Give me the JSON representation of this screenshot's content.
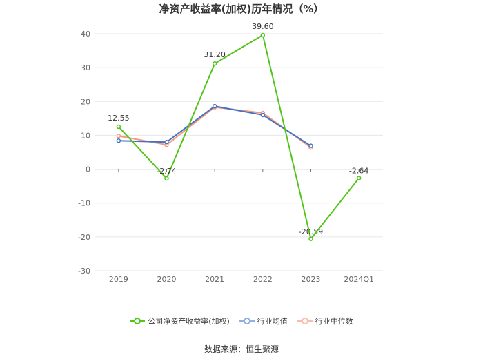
{
  "chart_data": {
    "type": "line",
    "title": "净资产收益率(加权)历年情况（%）",
    "categories": [
      "2019",
      "2020",
      "2021",
      "2022",
      "2023",
      "2024Q1"
    ],
    "ylim": [
      -30,
      40
    ],
    "yticks": [
      40,
      30,
      20,
      10,
      0,
      -10,
      -20,
      -30
    ],
    "grid": true,
    "legend_position": "bottom",
    "series": [
      {
        "name": "公司净资产收益率(加权)",
        "color": "#52c41a",
        "values": [
          12.55,
          -2.74,
          31.2,
          39.6,
          -20.59,
          -2.64
        ],
        "labels": [
          "12.55",
          "-2.74",
          "31.20",
          "39.60",
          "-20.59",
          "-2.64"
        ]
      },
      {
        "name": "行业均值",
        "color": "#4472c4",
        "values": [
          8.4,
          8.0,
          18.6,
          16.0,
          6.9,
          null
        ]
      },
      {
        "name": "行业中位数",
        "color": "#f4977b",
        "values": [
          9.8,
          7.2,
          18.3,
          16.6,
          6.4,
          null
        ]
      }
    ]
  },
  "source": "数据来源：恒生聚源"
}
